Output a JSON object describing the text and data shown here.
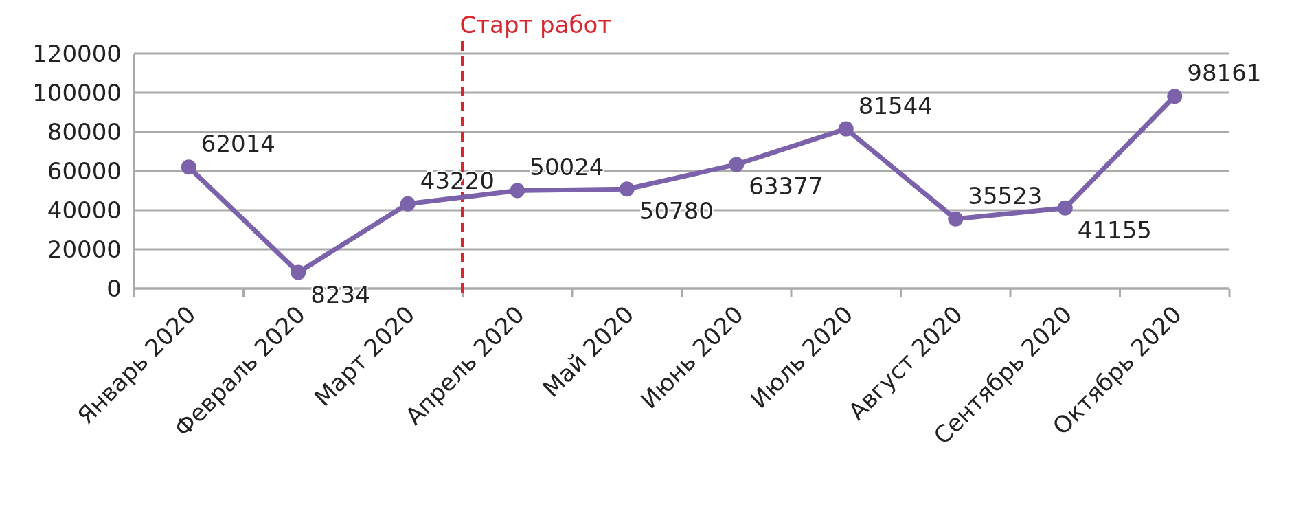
{
  "chart_data": {
    "type": "line",
    "categories": [
      "Январь 2020",
      "Февраль 2020",
      "Март 2020",
      "Апрель 2020",
      "Май 2020",
      "Июнь 2020",
      "Июль 2020",
      "Август 2020",
      "Сентябрь 2020",
      "Октябрь 2020"
    ],
    "series": [
      {
        "color": "#7b62aa",
        "values": [
          62014,
          8234,
          43220,
          50024,
          50780,
          63377,
          81544,
          35523,
          41155,
          98161
        ]
      }
    ],
    "ylim": [
      0,
      120000
    ],
    "yticks": [
      0,
      20000,
      40000,
      60000,
      80000,
      100000,
      120000
    ],
    "grid": "y",
    "marker": "circle",
    "line_style": "solid",
    "data_labels": true,
    "ref_lines": [
      {
        "axis": "x",
        "value": "Апрель 2020",
        "label": "Старт работ",
        "color": "#d9262e",
        "line_style": "dashed"
      }
    ]
  }
}
